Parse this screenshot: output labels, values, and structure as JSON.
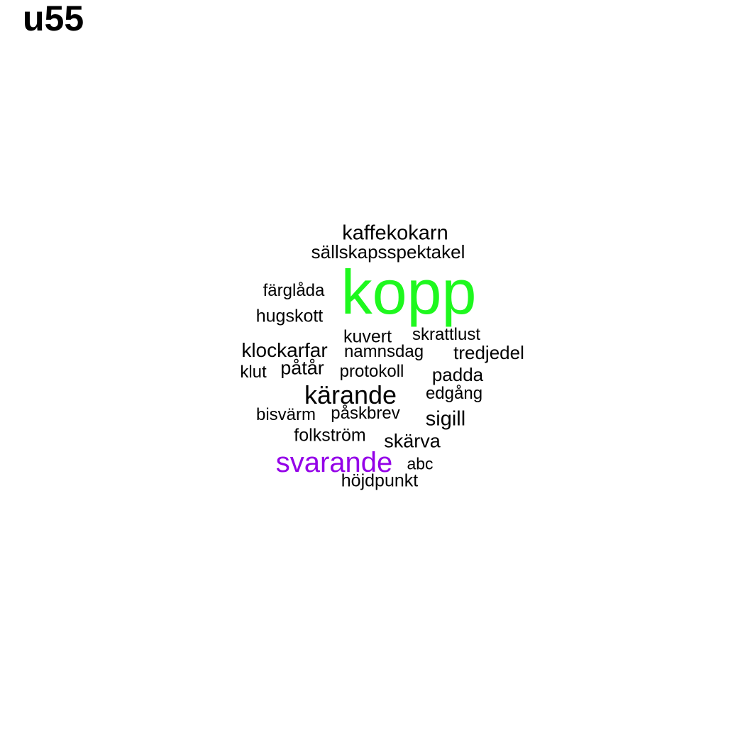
{
  "title": "u55",
  "words": [
    {
      "text": "kopp",
      "color": "#1ef81e"
    },
    {
      "text": "svarande",
      "color": "#9400e8"
    },
    {
      "text": "kärande",
      "color": "#000000"
    },
    {
      "text": "kaffekokarn",
      "color": "#000000"
    },
    {
      "text": "sällskapsspektakel",
      "color": "#000000"
    },
    {
      "text": "färglåda",
      "color": "#000000"
    },
    {
      "text": "hugskott",
      "color": "#000000"
    },
    {
      "text": "kuvert",
      "color": "#000000"
    },
    {
      "text": "skrattlust",
      "color": "#000000"
    },
    {
      "text": "klockarfar",
      "color": "#000000"
    },
    {
      "text": "namnsdag",
      "color": "#000000"
    },
    {
      "text": "tredjedel",
      "color": "#000000"
    },
    {
      "text": "klut",
      "color": "#000000"
    },
    {
      "text": "påtår",
      "color": "#000000"
    },
    {
      "text": "protokoll",
      "color": "#000000"
    },
    {
      "text": "padda",
      "color": "#000000"
    },
    {
      "text": "edgång",
      "color": "#000000"
    },
    {
      "text": "bisvärm",
      "color": "#000000"
    },
    {
      "text": "påskbrev",
      "color": "#000000"
    },
    {
      "text": "sigill",
      "color": "#000000"
    },
    {
      "text": "folkström",
      "color": "#000000"
    },
    {
      "text": "skärva",
      "color": "#000000"
    },
    {
      "text": "abc",
      "color": "#000000"
    },
    {
      "text": "höjdpunkt",
      "color": "#000000"
    }
  ]
}
